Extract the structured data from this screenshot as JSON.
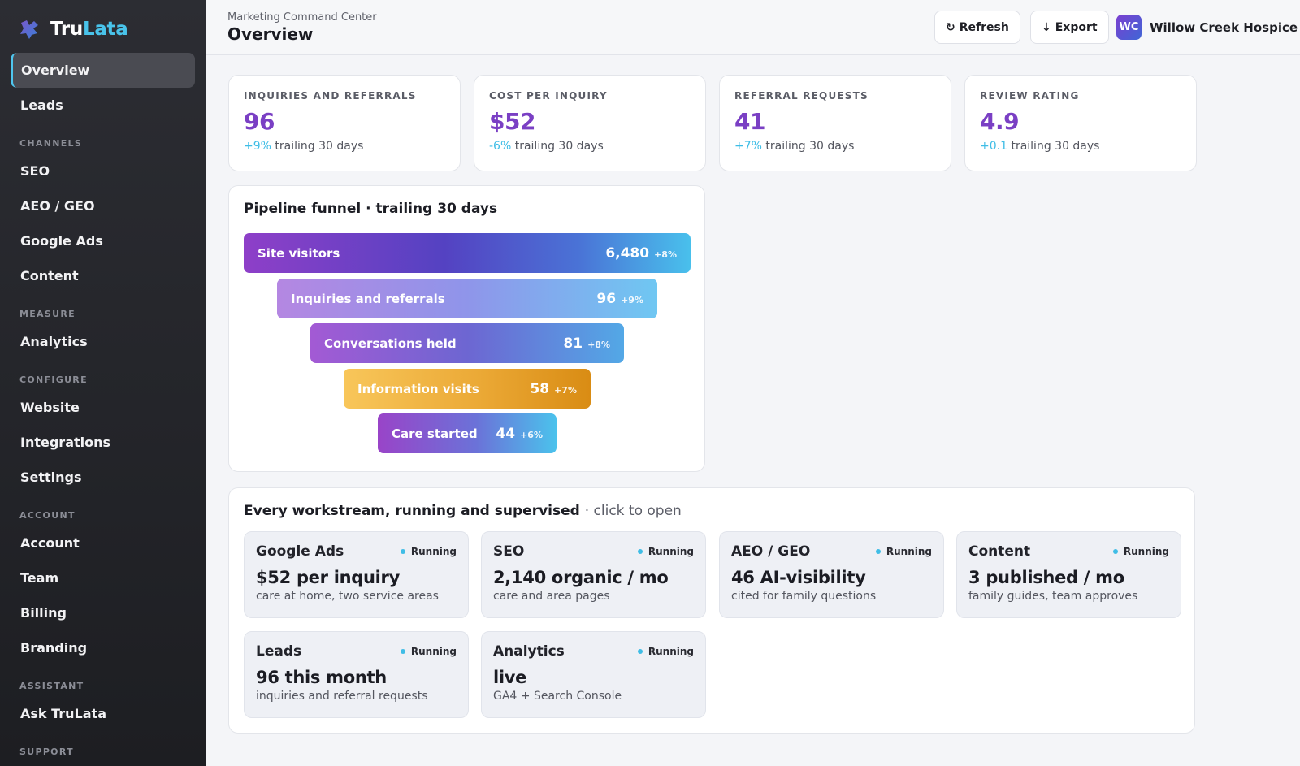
{
  "brand": {
    "name_a": "Tru",
    "name_b": "Lata"
  },
  "sidebar": {
    "top_items": [
      {
        "label": "Overview",
        "active": true
      },
      {
        "label": "Leads"
      }
    ],
    "sections": [
      {
        "title": "CHANNELS",
        "items": [
          "SEO",
          "AEO / GEO",
          "Google Ads",
          "Content"
        ]
      },
      {
        "title": "MEASURE",
        "items": [
          "Analytics"
        ]
      },
      {
        "title": "CONFIGURE",
        "items": [
          "Website",
          "Integrations",
          "Settings"
        ]
      },
      {
        "title": "ACCOUNT",
        "items": [
          "Account",
          "Team",
          "Billing",
          "Branding"
        ]
      },
      {
        "title": "ASSISTANT",
        "items": [
          "Ask TruLata"
        ]
      },
      {
        "title": "SUPPORT",
        "items": []
      }
    ]
  },
  "header": {
    "breadcrumb": "Marketing Command Center",
    "title": "Overview",
    "refresh_label": "Refresh",
    "export_label": "Export",
    "org_initials": "WC",
    "org_name": "Willow Creek Hospice"
  },
  "kpis": [
    {
      "label": "INQUIRIES AND REFERRALS",
      "value": "96",
      "delta": "+9%",
      "period": "trailing 30 days"
    },
    {
      "label": "COST PER INQUIRY",
      "value": "$52",
      "delta": "-6%",
      "period": "trailing 30 days"
    },
    {
      "label": "REFERRAL REQUESTS",
      "value": "41",
      "delta": "+7%",
      "period": "trailing 30 days"
    },
    {
      "label": "REVIEW RATING",
      "value": "4.9",
      "delta": "+0.1",
      "period": "trailing 30 days"
    }
  ],
  "funnel": {
    "title": "Pipeline funnel · trailing 30 days",
    "stages": [
      {
        "label": "Site visitors",
        "value": "6,480",
        "delta": "+8%"
      },
      {
        "label": "Inquiries and referrals",
        "value": "96",
        "delta": "+9%"
      },
      {
        "label": "Conversations held",
        "value": "81",
        "delta": "+8%"
      },
      {
        "label": "Information visits",
        "value": "58",
        "delta": "+7%"
      },
      {
        "label": "Care started",
        "value": "44",
        "delta": "+6%"
      }
    ]
  },
  "workstreams": {
    "title": "Every workstream, running and supervised",
    "hint": "· click to open",
    "tiles": [
      {
        "name": "Google Ads",
        "status": "Running",
        "metric": "$52 per inquiry",
        "desc": "care at home, two service areas"
      },
      {
        "name": "SEO",
        "status": "Running",
        "metric": "2,140 organic / mo",
        "desc": "care and area pages"
      },
      {
        "name": "AEO / GEO",
        "status": "Running",
        "metric": "46 AI-visibility",
        "desc": "cited for family questions"
      },
      {
        "name": "Content",
        "status": "Running",
        "metric": "3 published / mo",
        "desc": "family guides, team approves"
      },
      {
        "name": "Leads",
        "status": "Running",
        "metric": "96 this month",
        "desc": "inquiries and referral requests"
      },
      {
        "name": "Analytics",
        "status": "Running",
        "metric": "live",
        "desc": "GA4 + Search Console"
      }
    ]
  },
  "colors": {
    "accent": "#49c3ea",
    "kpi_value": "#7a3fc4",
    "delta": "#3fbde6"
  }
}
